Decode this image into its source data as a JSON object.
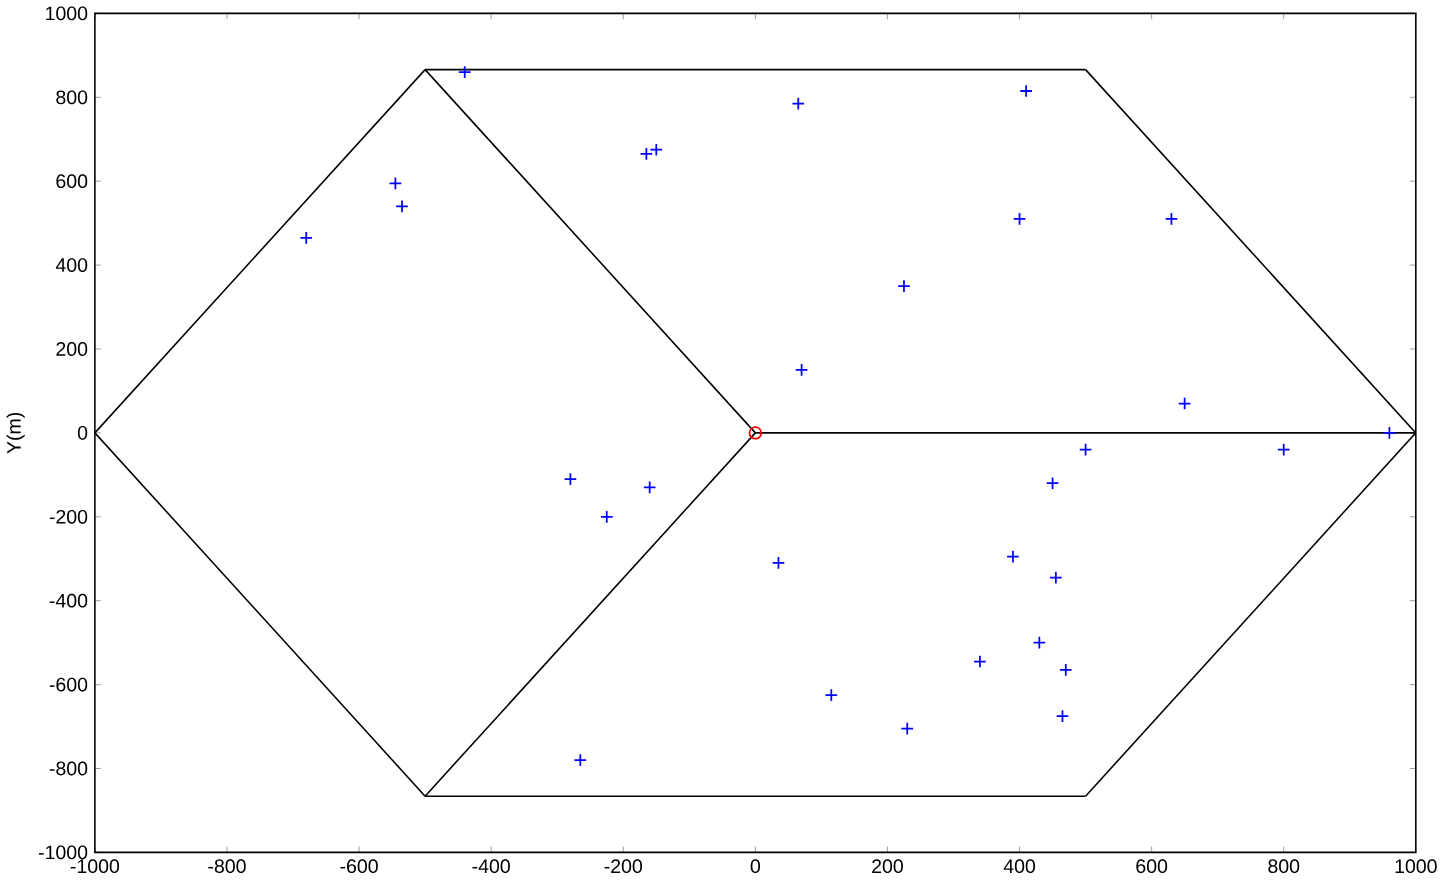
{
  "chart_data": {
    "type": "scatter",
    "ylabel": "Y(m)",
    "xlim": [
      -1000,
      1000
    ],
    "ylim": [
      -1000,
      1000
    ],
    "xticks": [
      -1000,
      -800,
      -600,
      -400,
      -200,
      0,
      200,
      400,
      600,
      800,
      1000
    ],
    "yticks": [
      -1000,
      -800,
      -600,
      -400,
      -200,
      0,
      200,
      400,
      600,
      800,
      1000
    ],
    "series": [
      {
        "type": "line",
        "color": "#000000",
        "marker": "none",
        "line_style": "solid",
        "x": [
          1000,
          500
        ],
        "values": [
          0,
          866
        ]
      },
      {
        "type": "line",
        "color": "#000000",
        "marker": "none",
        "line_style": "solid",
        "x": [
          500,
          -500
        ],
        "values": [
          866,
          866
        ]
      },
      {
        "type": "line",
        "color": "#000000",
        "marker": "none",
        "line_style": "solid",
        "x": [
          -500,
          -1000
        ],
        "values": [
          866,
          0
        ]
      },
      {
        "type": "line",
        "color": "#000000",
        "marker": "none",
        "line_style": "solid",
        "x": [
          -1000,
          -500
        ],
        "values": [
          0,
          -866
        ]
      },
      {
        "type": "line",
        "color": "#000000",
        "marker": "none",
        "line_style": "solid",
        "x": [
          -500,
          500
        ],
        "values": [
          -866,
          -866
        ]
      },
      {
        "type": "line",
        "color": "#000000",
        "marker": "none",
        "line_style": "solid",
        "x": [
          500,
          1000
        ],
        "values": [
          -866,
          0
        ]
      },
      {
        "type": "line",
        "color": "#000000",
        "marker": "none",
        "line_style": "solid",
        "x": [
          -500,
          0
        ],
        "values": [
          866,
          0
        ]
      },
      {
        "type": "line",
        "color": "#000000",
        "marker": "none",
        "line_style": "solid",
        "x": [
          0,
          1000
        ],
        "values": [
          0,
          0
        ]
      },
      {
        "type": "line",
        "color": "#000000",
        "marker": "none",
        "line_style": "solid",
        "x": [
          0,
          -500
        ],
        "values": [
          0,
          -866
        ]
      },
      {
        "color": "#0000ff",
        "marker": "cross",
        "x": [
          -440,
          -165,
          -150,
          -545,
          -535,
          -680,
          65,
          410,
          400,
          630,
          225,
          70,
          650,
          960,
          500,
          800,
          450,
          -280,
          -160,
          -225,
          35,
          390,
          455,
          430,
          340,
          470,
          465,
          115,
          230,
          -265
        ],
        "values": [
          860,
          665,
          675,
          595,
          540,
          465,
          785,
          815,
          510,
          510,
          350,
          150,
          70,
          0,
          -40,
          -40,
          -120,
          -110,
          -130,
          -200,
          -310,
          -295,
          -345,
          -500,
          -545,
          -565,
          -675,
          -625,
          -705,
          -780
        ]
      },
      {
        "color": "#ff0000",
        "marker": "circle",
        "x": [
          0
        ],
        "values": [
          0
        ]
      }
    ]
  }
}
